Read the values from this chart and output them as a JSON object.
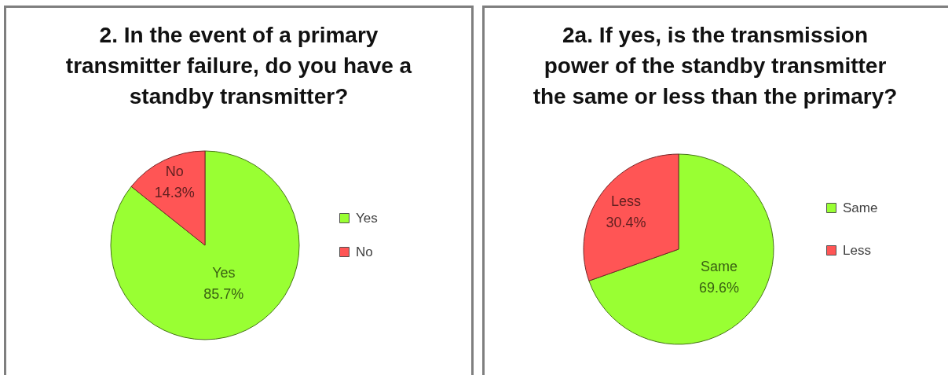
{
  "chart_data": [
    {
      "type": "pie",
      "title": "2. In the event of a primary\ntransmitter failure, do you have a\nstandby  transmitter?",
      "categories": [
        "Yes",
        "No"
      ],
      "values": [
        85.7,
        14.3
      ],
      "colors": [
        "#99ff33",
        "#ff5555"
      ],
      "value_labels": [
        "85.7%",
        "14.3%"
      ],
      "legend": "right"
    },
    {
      "type": "pie",
      "title": "2a. If yes, is the transmission\npower of the standby transmitter\nthe same or less than the primary?",
      "categories": [
        "Same",
        "Less"
      ],
      "values": [
        69.6,
        30.4
      ],
      "colors": [
        "#99ff33",
        "#ff5555"
      ],
      "value_labels": [
        "69.6%",
        "30.4%"
      ],
      "legend": "right"
    }
  ]
}
